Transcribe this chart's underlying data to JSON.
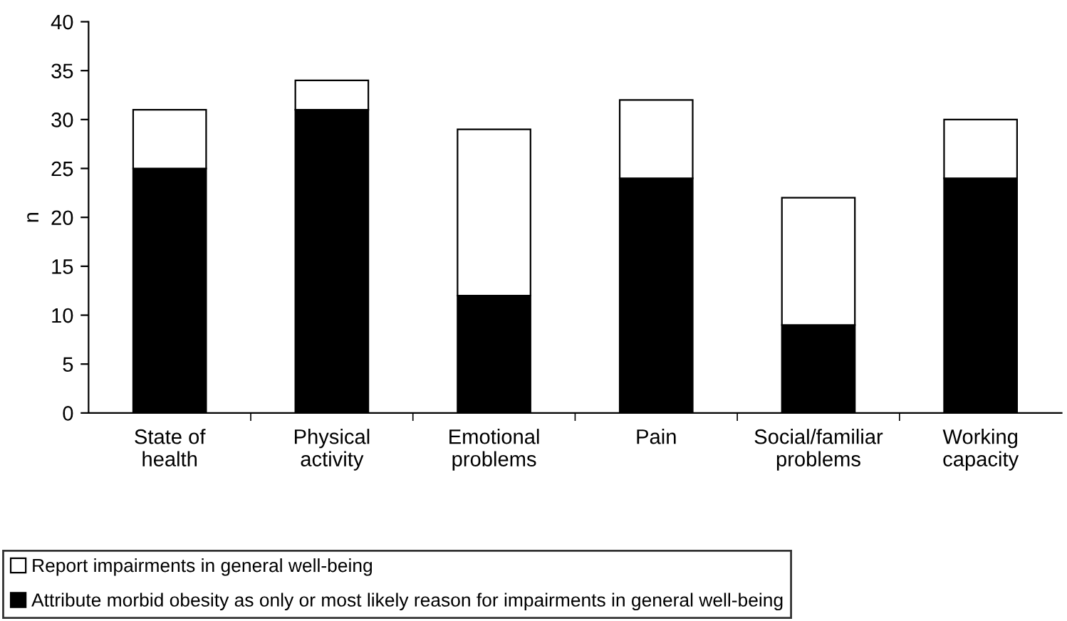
{
  "chart_data": {
    "type": "bar",
    "stacked": true,
    "ylabel": "n",
    "categories": [
      "State of\nhealth",
      "Physical\nactivity",
      "Emotional\nproblems",
      "Pain",
      "Social/familiar\nproblems",
      "Working\ncapacity"
    ],
    "series": [
      {
        "name": "Attribute morbid obesity as only or most likely reason for impairments in general well-being",
        "color": "#000000",
        "values": [
          25,
          31,
          12,
          24,
          9,
          24
        ]
      },
      {
        "name": "Report impairments in general well-being",
        "color": "#ffffff",
        "values": [
          6,
          3,
          17,
          8,
          13,
          6
        ]
      }
    ],
    "ylim": [
      0,
      40
    ],
    "yticks": [
      0,
      5,
      10,
      15,
      20,
      25,
      30,
      35,
      40
    ],
    "grid": false,
    "legend": "bottom"
  }
}
